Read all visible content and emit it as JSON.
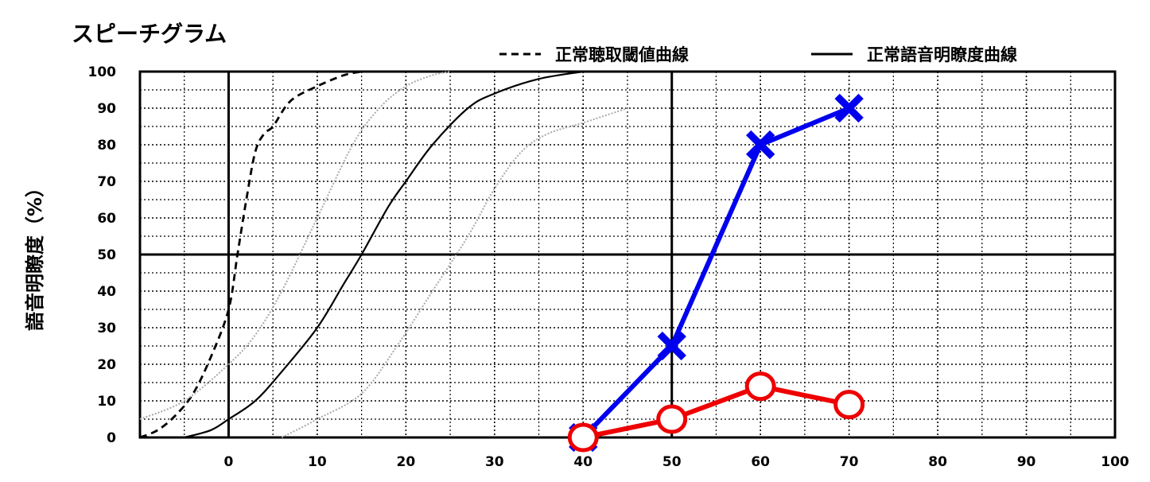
{
  "chart_data": {
    "type": "line",
    "title": "スピーチグラム",
    "xlabel": "",
    "ylabel": "語音明瞭度（%）",
    "xlim": [
      -10,
      100
    ],
    "ylim": [
      0,
      100
    ],
    "x_ticks": [
      0,
      10,
      20,
      30,
      40,
      50,
      60,
      70,
      80,
      90,
      100
    ],
    "y_ticks": [
      0,
      10,
      20,
      30,
      40,
      50,
      60,
      70,
      80,
      90,
      100
    ],
    "grid": true,
    "legend_position": "top-right",
    "reference_curves": [
      {
        "name": "正常聴取閾値曲線",
        "style": "dashed",
        "color": "#000000",
        "x": [
          -10,
          -8,
          -6,
          -4,
          -2,
          0,
          1,
          2,
          3,
          4,
          5,
          7,
          10,
          13,
          15
        ],
        "y": [
          0,
          2,
          6,
          12,
          22,
          35,
          50,
          65,
          78,
          83,
          85,
          92,
          96,
          99,
          100
        ]
      },
      {
        "name": "正常語音明瞭度曲線",
        "style": "solid",
        "color": "#000000",
        "x": [
          -5,
          -2,
          0,
          3,
          6,
          10,
          13,
          15,
          18,
          20,
          23,
          27,
          30,
          35,
          40
        ],
        "y": [
          0,
          2,
          5,
          10,
          18,
          30,
          42,
          50,
          63,
          70,
          80,
          90,
          94,
          98,
          100
        ]
      },
      {
        "style": "dotted",
        "color": "#aaaaaa",
        "x": [
          -10,
          -5,
          0,
          3,
          6,
          10,
          14,
          17,
          20,
          23,
          25
        ],
        "y": [
          5,
          10,
          20,
          28,
          40,
          60,
          80,
          90,
          96,
          99,
          100
        ]
      },
      {
        "style": "dotted",
        "color": "#aaaaaa",
        "x": [
          6,
          10,
          15,
          19,
          23,
          27,
          30,
          33,
          36,
          40,
          45
        ],
        "y": [
          0,
          5,
          12,
          25,
          40,
          55,
          68,
          78,
          83,
          86,
          90
        ]
      }
    ],
    "series": [
      {
        "marker": "x",
        "color": "#0000ee",
        "x": [
          40,
          50,
          60,
          70
        ],
        "y": [
          0,
          25,
          80,
          90
        ]
      },
      {
        "marker": "o",
        "color": "#ee0000",
        "x": [
          40,
          50,
          60,
          70
        ],
        "y": [
          0,
          5,
          14,
          9
        ]
      }
    ]
  }
}
